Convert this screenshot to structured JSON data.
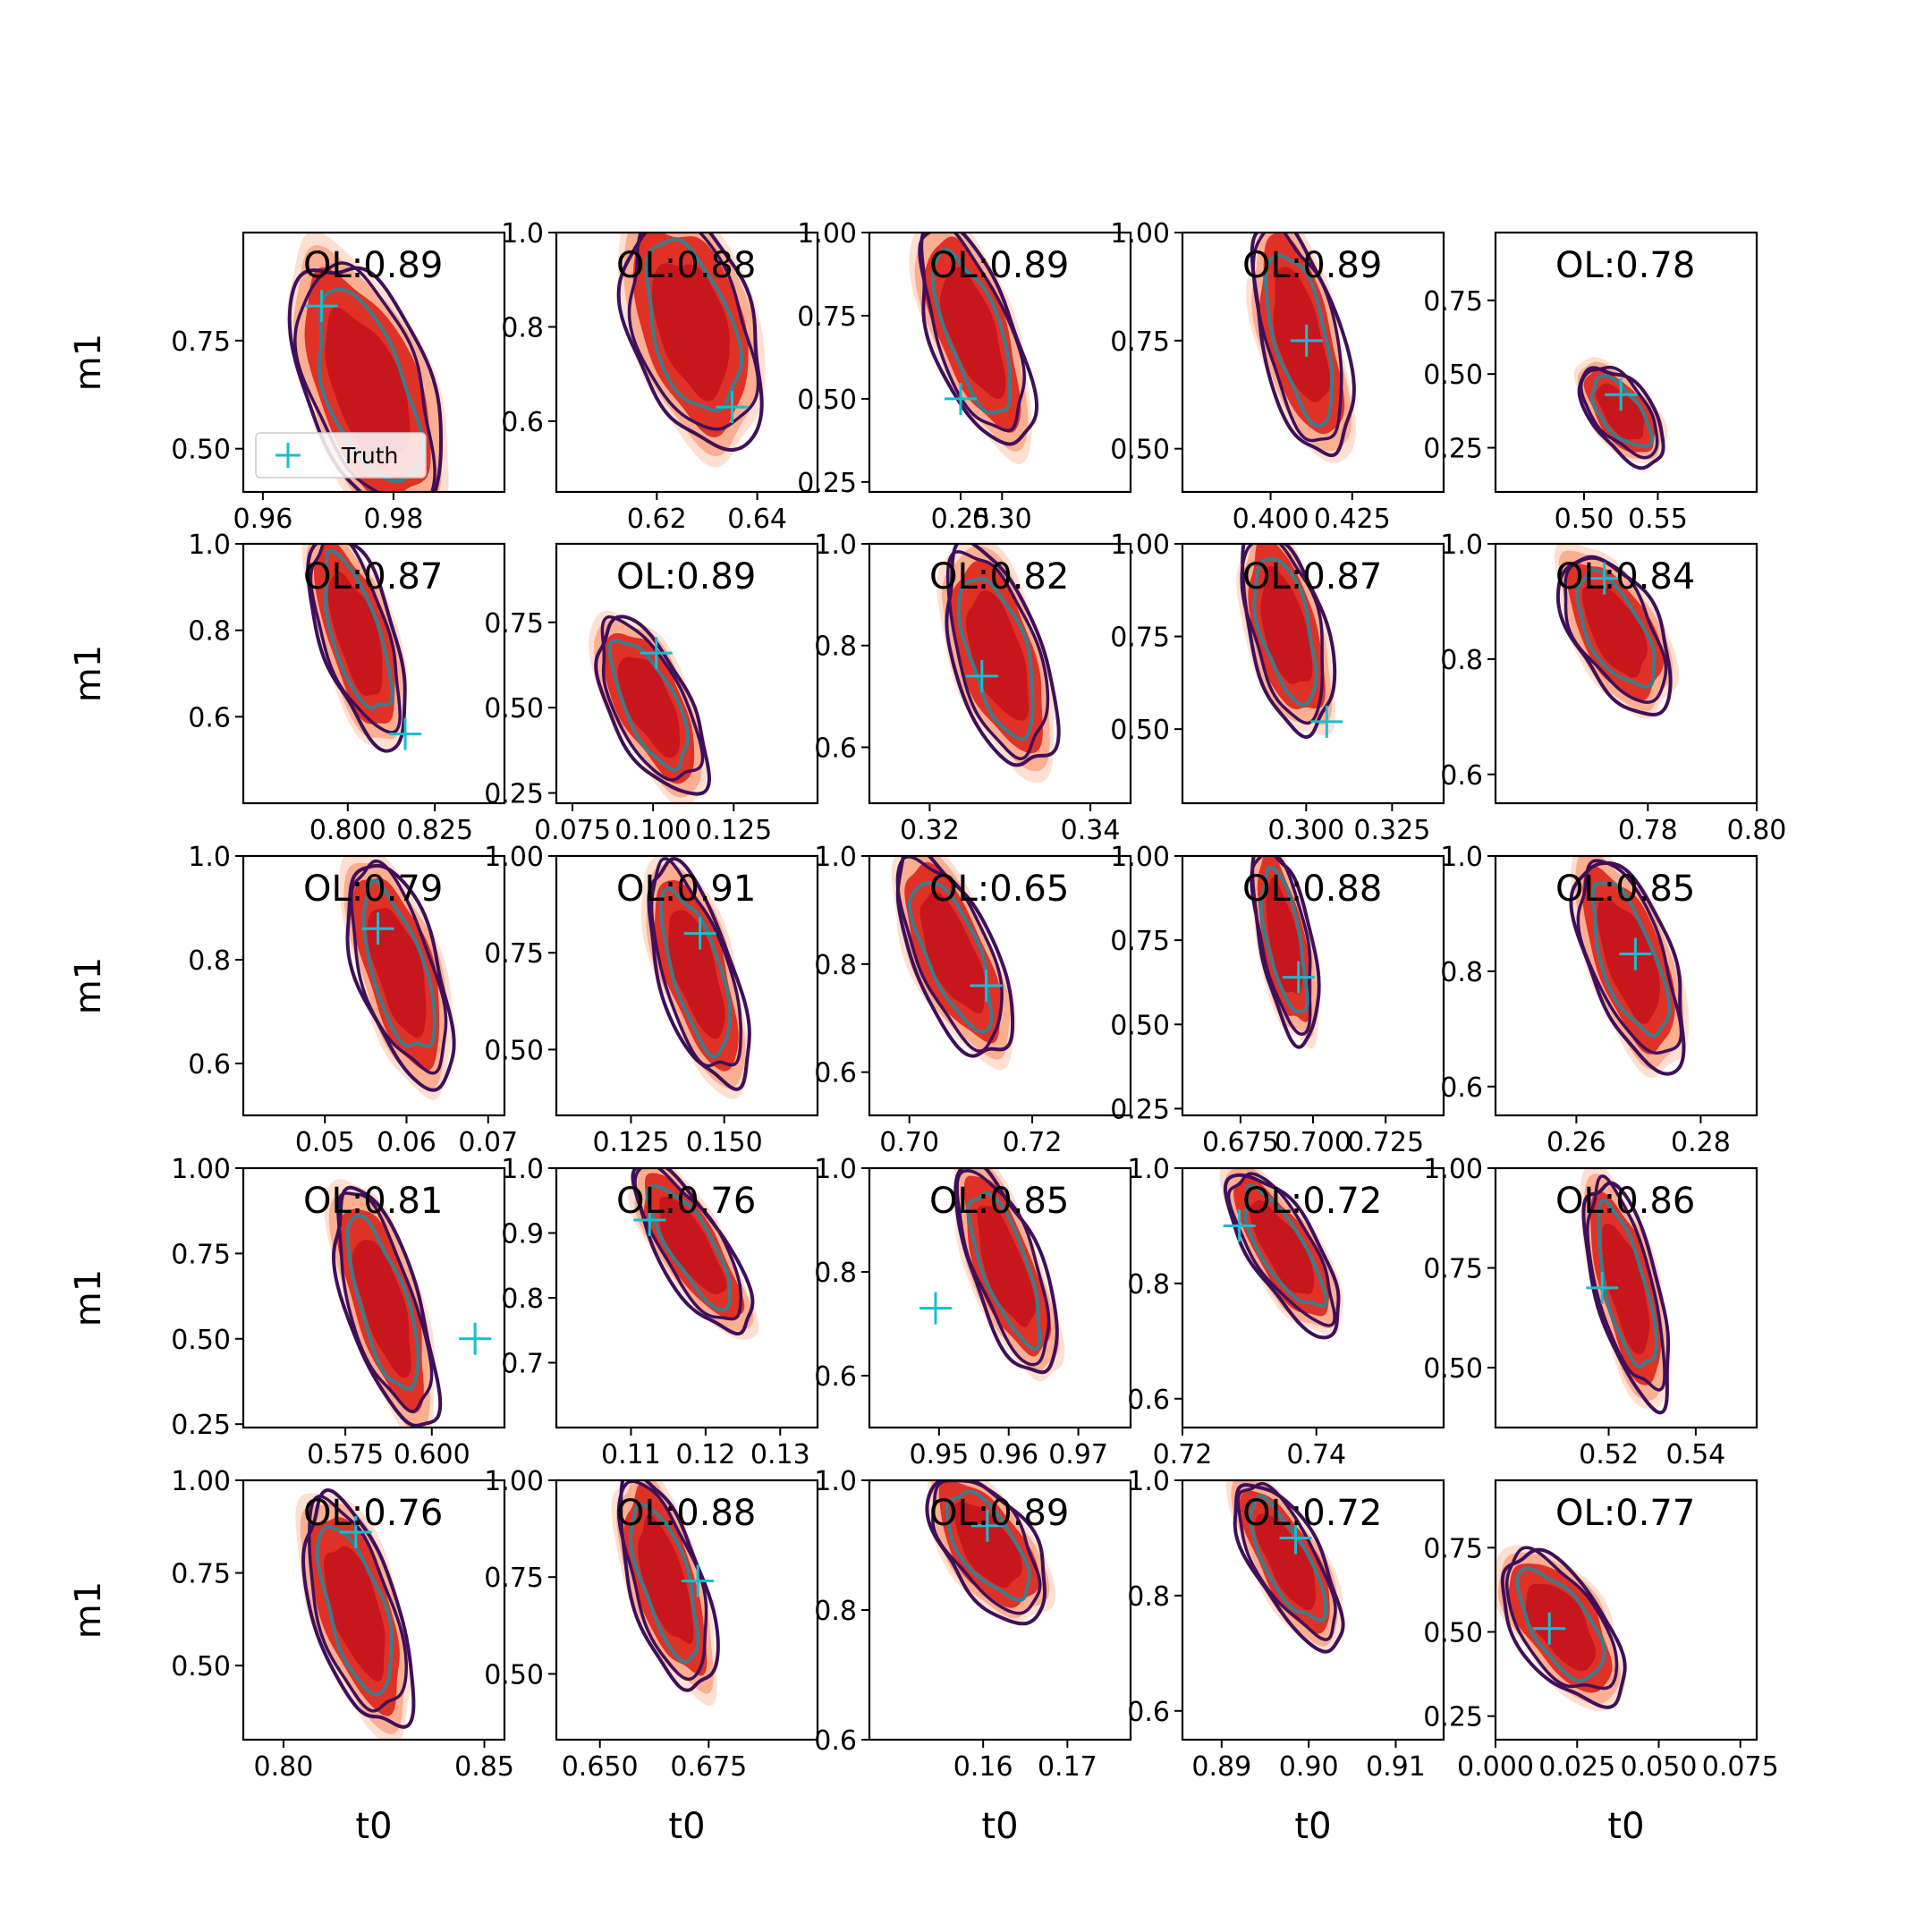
{
  "figure": {
    "x_axis_label": "t0",
    "y_axis_label": "m1",
    "legend_label": "Truth",
    "legend_panel": 0,
    "colors": {
      "fill_dark": "#c8161d",
      "fill_mid": "#e03127",
      "fill_light": "#fcae91",
      "fill_lightest": "#fde0d2",
      "contour_outer": "#3f0f5a",
      "contour_inner": "#3a7d8c",
      "truth_marker": "#17becf",
      "axes": "#000000"
    }
  },
  "chart_data": [
    {
      "type": "scatter",
      "overlap_label": "OL:0.89",
      "xlim": [
        0.957,
        0.997
      ],
      "ylim": [
        0.4,
        1.0
      ],
      "xticks": [
        {
          "v": 0.96,
          "t": "0.96"
        },
        {
          "v": 0.98,
          "t": "0.98"
        }
      ],
      "yticks": [
        {
          "v": 0.5,
          "t": "0.50"
        },
        {
          "v": 0.75,
          "t": "0.75"
        }
      ],
      "truth": {
        "x": 0.969,
        "y": 0.83
      },
      "blob": {
        "cx": 0.976,
        "cy": 0.64,
        "rx": 0.0085,
        "ry": 0.3,
        "tilt": -0.35
      }
    },
    {
      "type": "scatter",
      "overlap_label": "OL:0.88",
      "xlim": [
        0.6,
        0.652
      ],
      "ylim": [
        0.45,
        1.0
      ],
      "xticks": [
        {
          "v": 0.62,
          "t": "0.62"
        },
        {
          "v": 0.64,
          "t": "0.64"
        }
      ],
      "yticks": [
        {
          "v": 0.6,
          "t": "0.6"
        },
        {
          "v": 0.8,
          "t": "0.8"
        },
        {
          "v": 1.0,
          "t": "1.0"
        }
      ],
      "truth": {
        "x": 0.635,
        "y": 0.63
      },
      "blob": {
        "cx": 0.627,
        "cy": 0.8,
        "rx": 0.011,
        "ry": 0.24,
        "tilt": -0.3
      }
    },
    {
      "type": "scatter",
      "overlap_label": "OL:0.89",
      "xlim": [
        0.14,
        0.455
      ],
      "ylim": [
        0.22,
        1.0
      ],
      "xticks": [
        {
          "v": 0.25,
          "t": "0.25"
        },
        {
          "v": 0.3,
          "t": "0.30"
        }
      ],
      "yticks": [
        {
          "v": 0.25,
          "t": "0.25"
        },
        {
          "v": 0.5,
          "t": "0.50"
        },
        {
          "v": 0.75,
          "t": "0.75"
        },
        {
          "v": 1.0,
          "t": "1.00"
        }
      ],
      "truth": {
        "x": 0.25,
        "y": 0.5
      },
      "blob": {
        "cx": 0.265,
        "cy": 0.7,
        "rx": 0.045,
        "ry": 0.33,
        "tilt": -0.35
      }
    },
    {
      "type": "scatter",
      "overlap_label": "OL:0.89",
      "xlim": [
        0.373,
        0.453
      ],
      "ylim": [
        0.4,
        1.0
      ],
      "xticks": [
        {
          "v": 0.4,
          "t": "0.400"
        },
        {
          "v": 0.425,
          "t": "0.425"
        }
      ],
      "yticks": [
        {
          "v": 0.5,
          "t": "0.50"
        },
        {
          "v": 0.75,
          "t": "0.75"
        },
        {
          "v": 1.0,
          "t": "1.00"
        }
      ],
      "truth": {
        "x": 0.411,
        "y": 0.75
      },
      "blob": {
        "cx": 0.409,
        "cy": 0.76,
        "rx": 0.011,
        "ry": 0.26,
        "tilt": -0.25
      }
    },
    {
      "type": "scatter",
      "overlap_label": "OL:0.78",
      "xlim": [
        0.44,
        0.617
      ],
      "ylim": [
        0.1,
        0.98
      ],
      "xticks": [
        {
          "v": 0.5,
          "t": "0.50"
        },
        {
          "v": 0.55,
          "t": "0.55"
        }
      ],
      "yticks": [
        {
          "v": 0.25,
          "t": "0.25"
        },
        {
          "v": 0.5,
          "t": "0.50"
        },
        {
          "v": 0.75,
          "t": "0.75"
        }
      ],
      "truth": {
        "x": 0.525,
        "y": 0.43
      },
      "blob": {
        "cx": 0.525,
        "cy": 0.37,
        "rx": 0.018,
        "ry": 0.18,
        "tilt": -0.65
      }
    },
    {
      "type": "scatter",
      "overlap_label": "OL:0.87",
      "xlim": [
        0.77,
        0.845
      ],
      "ylim": [
        0.4,
        1.0
      ],
      "xticks": [
        {
          "v": 0.8,
          "t": "0.800"
        },
        {
          "v": 0.825,
          "t": "0.825"
        }
      ],
      "yticks": [
        {
          "v": 0.6,
          "t": "0.6"
        },
        {
          "v": 0.8,
          "t": "0.8"
        },
        {
          "v": 1.0,
          "t": "1.0"
        }
      ],
      "truth": {
        "x": 0.8165,
        "y": 0.56
      },
      "blob": {
        "cx": 0.8025,
        "cy": 0.79,
        "rx": 0.0095,
        "ry": 0.24,
        "tilt": -0.3
      }
    },
    {
      "type": "scatter",
      "overlap_label": "OL:0.89",
      "xlim": [
        0.07,
        0.151
      ],
      "ylim": [
        0.22,
        0.98
      ],
      "xticks": [
        {
          "v": 0.075,
          "t": "0.075"
        },
        {
          "v": 0.1,
          "t": "0.100"
        },
        {
          "v": 0.125,
          "t": "0.125"
        }
      ],
      "yticks": [
        {
          "v": 0.25,
          "t": "0.25"
        },
        {
          "v": 0.5,
          "t": "0.50"
        },
        {
          "v": 0.75,
          "t": "0.75"
        }
      ],
      "truth": {
        "x": 0.101,
        "y": 0.66
      },
      "blob": {
        "cx": 0.099,
        "cy": 0.51,
        "rx": 0.011,
        "ry": 0.26,
        "tilt": -0.45
      }
    },
    {
      "type": "scatter",
      "overlap_label": "OL:0.82",
      "xlim": [
        0.3125,
        0.345
      ],
      "ylim": [
        0.49,
        1.0
      ],
      "xticks": [
        {
          "v": 0.32,
          "t": "0.32"
        },
        {
          "v": 0.34,
          "t": "0.34"
        }
      ],
      "yticks": [
        {
          "v": 0.6,
          "t": "0.6"
        },
        {
          "v": 0.8,
          "t": "0.8"
        },
        {
          "v": 1.0,
          "t": "1.0"
        }
      ],
      "truth": {
        "x": 0.3265,
        "y": 0.74
      },
      "blob": {
        "cx": 0.3285,
        "cy": 0.78,
        "rx": 0.005,
        "ry": 0.21,
        "tilt": -0.3
      }
    },
    {
      "type": "scatter",
      "overlap_label": "OL:0.87",
      "xlim": [
        0.264,
        0.34
      ],
      "ylim": [
        0.3,
        1.0
      ],
      "xticks": [
        {
          "v": 0.3,
          "t": "0.300"
        },
        {
          "v": 0.325,
          "t": "0.325"
        }
      ],
      "yticks": [
        {
          "v": 0.5,
          "t": "0.50"
        },
        {
          "v": 0.75,
          "t": "0.75"
        },
        {
          "v": 1.0,
          "t": "1.00"
        }
      ],
      "truth": {
        "x": 0.306,
        "y": 0.52
      },
      "blob": {
        "cx": 0.294,
        "cy": 0.77,
        "rx": 0.01,
        "ry": 0.26,
        "tilt": -0.25
      }
    },
    {
      "type": "scatter",
      "overlap_label": "OL:0.84",
      "xlim": [
        0.752,
        0.8
      ],
      "ylim": [
        0.55,
        1.0
      ],
      "xticks": [
        {
          "v": 0.78,
          "t": "0.78"
        },
        {
          "v": 0.8,
          "t": "0.80"
        }
      ],
      "yticks": [
        {
          "v": 0.6,
          "t": "0.6"
        },
        {
          "v": 0.8,
          "t": "0.8"
        },
        {
          "v": 1.0,
          "t": "1.0"
        }
      ],
      "truth": {
        "x": 0.772,
        "y": 0.94
      },
      "blob": {
        "cx": 0.774,
        "cy": 0.85,
        "rx": 0.007,
        "ry": 0.14,
        "tilt": -0.5
      }
    },
    {
      "type": "scatter",
      "overlap_label": "OL:0.79",
      "xlim": [
        0.04,
        0.072
      ],
      "ylim": [
        0.5,
        1.0
      ],
      "xticks": [
        {
          "v": 0.05,
          "t": "0.05"
        },
        {
          "v": 0.06,
          "t": "0.06"
        },
        {
          "v": 0.07,
          "t": "0.07"
        }
      ],
      "yticks": [
        {
          "v": 0.6,
          "t": "0.6"
        },
        {
          "v": 0.8,
          "t": "0.8"
        },
        {
          "v": 1.0,
          "t": "1.0"
        }
      ],
      "truth": {
        "x": 0.0565,
        "y": 0.86
      },
      "blob": {
        "cx": 0.059,
        "cy": 0.78,
        "rx": 0.0045,
        "ry": 0.21,
        "tilt": -0.3
      }
    },
    {
      "type": "scatter",
      "overlap_label": "OL:0.91",
      "xlim": [
        0.105,
        0.175
      ],
      "ylim": [
        0.33,
        1.0
      ],
      "xticks": [
        {
          "v": 0.125,
          "t": "0.125"
        },
        {
          "v": 0.15,
          "t": "0.150"
        }
      ],
      "yticks": [
        {
          "v": 0.5,
          "t": "0.50"
        },
        {
          "v": 0.75,
          "t": "0.75"
        },
        {
          "v": 1.0,
          "t": "1.00"
        }
      ],
      "truth": {
        "x": 0.1435,
        "y": 0.8
      },
      "blob": {
        "cx": 0.1425,
        "cy": 0.7,
        "rx": 0.009,
        "ry": 0.28,
        "tilt": -0.3
      }
    },
    {
      "type": "scatter",
      "overlap_label": "OL:0.65",
      "xlim": [
        0.6935,
        0.736
      ],
      "ylim": [
        0.52,
        1.0
      ],
      "xticks": [
        {
          "v": 0.7,
          "t": "0.70"
        },
        {
          "v": 0.72,
          "t": "0.72"
        }
      ],
      "yticks": [
        {
          "v": 0.6,
          "t": "0.6"
        },
        {
          "v": 0.8,
          "t": "0.8"
        },
        {
          "v": 1.0,
          "t": "1.0"
        }
      ],
      "truth": {
        "x": 0.7125,
        "y": 0.76
      },
      "blob": {
        "cx": 0.707,
        "cy": 0.82,
        "rx": 0.006,
        "ry": 0.19,
        "tilt": -0.4
      }
    },
    {
      "type": "scatter",
      "overlap_label": "OL:0.88",
      "xlim": [
        0.655,
        0.745
      ],
      "ylim": [
        0.23,
        1.0
      ],
      "xticks": [
        {
          "v": 0.675,
          "t": "0.675"
        },
        {
          "v": 0.7,
          "t": "0.700"
        },
        {
          "v": 0.725,
          "t": "0.725"
        }
      ],
      "yticks": [
        {
          "v": 0.25,
          "t": "0.25"
        },
        {
          "v": 0.5,
          "t": "0.50"
        },
        {
          "v": 0.75,
          "t": "0.75"
        },
        {
          "v": 1.0,
          "t": "1.00"
        }
      ],
      "truth": {
        "x": 0.695,
        "y": 0.64
      },
      "blob": {
        "cx": 0.69,
        "cy": 0.75,
        "rx": 0.008,
        "ry": 0.28,
        "tilt": -0.2
      }
    },
    {
      "type": "scatter",
      "overlap_label": "OL:0.85",
      "xlim": [
        0.247,
        0.289
      ],
      "ylim": [
        0.55,
        1.0
      ],
      "xticks": [
        {
          "v": 0.26,
          "t": "0.26"
        },
        {
          "v": 0.28,
          "t": "0.28"
        }
      ],
      "yticks": [
        {
          "v": 0.6,
          "t": "0.6"
        },
        {
          "v": 0.8,
          "t": "0.8"
        },
        {
          "v": 1.0,
          "t": "1.0"
        }
      ],
      "truth": {
        "x": 0.2695,
        "y": 0.83
      },
      "blob": {
        "cx": 0.2685,
        "cy": 0.82,
        "rx": 0.006,
        "ry": 0.18,
        "tilt": -0.35
      }
    },
    {
      "type": "scatter",
      "overlap_label": "OL:0.81",
      "xlim": [
        0.5455,
        0.621
      ],
      "ylim": [
        0.24,
        1.0
      ],
      "xticks": [
        {
          "v": 0.575,
          "t": "0.575"
        },
        {
          "v": 0.6,
          "t": "0.600"
        }
      ],
      "yticks": [
        {
          "v": 0.25,
          "t": "0.25"
        },
        {
          "v": 0.5,
          "t": "0.50"
        },
        {
          "v": 0.75,
          "t": "0.75"
        },
        {
          "v": 1.0,
          "t": "1.00"
        }
      ],
      "truth": {
        "x": 0.6125,
        "y": 0.5
      },
      "blob": {
        "cx": 0.586,
        "cy": 0.6,
        "rx": 0.0095,
        "ry": 0.34,
        "tilt": -0.3
      }
    },
    {
      "type": "scatter",
      "overlap_label": "OL:0.76",
      "xlim": [
        0.1,
        0.135
      ],
      "ylim": [
        0.6,
        1.0
      ],
      "xticks": [
        {
          "v": 0.11,
          "t": "0.11"
        },
        {
          "v": 0.12,
          "t": "0.12"
        },
        {
          "v": 0.13,
          "t": "0.13"
        }
      ],
      "yticks": [
        {
          "v": 0.7,
          "t": "0.7"
        },
        {
          "v": 0.8,
          "t": "0.8"
        },
        {
          "v": 0.9,
          "t": "0.9"
        },
        {
          "v": 1.0,
          "t": "1.0"
        }
      ],
      "truth": {
        "x": 0.1125,
        "y": 0.92
      },
      "blob": {
        "cx": 0.118,
        "cy": 0.88,
        "rx": 0.004,
        "ry": 0.14,
        "tilt": -0.55
      }
    },
    {
      "type": "scatter",
      "overlap_label": "OL:0.85",
      "xlim": [
        0.94,
        0.9775
      ],
      "ylim": [
        0.5,
        1.0
      ],
      "xticks": [
        {
          "v": 0.95,
          "t": "0.95"
        },
        {
          "v": 0.96,
          "t": "0.96"
        },
        {
          "v": 0.97,
          "t": "0.97"
        }
      ],
      "yticks": [
        {
          "v": 0.6,
          "t": "0.6"
        },
        {
          "v": 0.8,
          "t": "0.8"
        },
        {
          "v": 1.0,
          "t": "1.0"
        }
      ],
      "truth": {
        "x": 0.9495,
        "y": 0.73
      },
      "blob": {
        "cx": 0.9595,
        "cy": 0.81,
        "rx": 0.0045,
        "ry": 0.2,
        "tilt": -0.35
      }
    },
    {
      "type": "scatter",
      "overlap_label": "OL:0.72",
      "xlim": [
        0.72,
        0.759
      ],
      "ylim": [
        0.55,
        1.0
      ],
      "xticks": [
        {
          "v": 0.72,
          "t": "0.72"
        },
        {
          "v": 0.74,
          "t": "0.74"
        }
      ],
      "yticks": [
        {
          "v": 0.6,
          "t": "0.6"
        },
        {
          "v": 0.8,
          "t": "0.8"
        },
        {
          "v": 1.0,
          "t": "1.0"
        }
      ],
      "truth": {
        "x": 0.7285,
        "y": 0.9
      },
      "blob": {
        "cx": 0.735,
        "cy": 0.86,
        "rx": 0.0045,
        "ry": 0.15,
        "tilt": -0.55
      }
    },
    {
      "type": "scatter",
      "overlap_label": "OL:0.86",
      "xlim": [
        0.494,
        0.554
      ],
      "ylim": [
        0.35,
        1.0
      ],
      "xticks": [
        {
          "v": 0.52,
          "t": "0.52"
        },
        {
          "v": 0.54,
          "t": "0.54"
        }
      ],
      "yticks": [
        {
          "v": 0.5,
          "t": "0.50"
        },
        {
          "v": 0.75,
          "t": "0.75"
        },
        {
          "v": 1.0,
          "t": "1.00"
        }
      ],
      "truth": {
        "x": 0.5185,
        "y": 0.7
      },
      "blob": {
        "cx": 0.524,
        "cy": 0.7,
        "rx": 0.0065,
        "ry": 0.27,
        "tilt": -0.25
      }
    },
    {
      "type": "scatter",
      "overlap_label": "OL:0.76",
      "xlim": [
        0.79,
        0.855
      ],
      "ylim": [
        0.3,
        1.0
      ],
      "xticks": [
        {
          "v": 0.8,
          "t": "0.80"
        },
        {
          "v": 0.85,
          "t": "0.85"
        }
      ],
      "yticks": [
        {
          "v": 0.5,
          "t": "0.50"
        },
        {
          "v": 0.75,
          "t": "0.75"
        },
        {
          "v": 1.0,
          "t": "1.00"
        }
      ],
      "truth": {
        "x": 0.818,
        "y": 0.86
      },
      "blob": {
        "cx": 0.818,
        "cy": 0.65,
        "rx": 0.0095,
        "ry": 0.3,
        "tilt": -0.3
      }
    },
    {
      "type": "scatter",
      "overlap_label": "OL:0.88",
      "xlim": [
        0.64,
        0.7
      ],
      "ylim": [
        0.33,
        1.0
      ],
      "xticks": [
        {
          "v": 0.65,
          "t": "0.650"
        },
        {
          "v": 0.675,
          "t": "0.675"
        }
      ],
      "yticks": [
        {
          "v": 0.5,
          "t": "0.50"
        },
        {
          "v": 0.75,
          "t": "0.75"
        },
        {
          "v": 1.0,
          "t": "1.00"
        }
      ],
      "truth": {
        "x": 0.6725,
        "y": 0.74
      },
      "blob": {
        "cx": 0.665,
        "cy": 0.74,
        "rx": 0.0075,
        "ry": 0.27,
        "tilt": -0.3
      }
    },
    {
      "type": "scatter",
      "overlap_label": "OL:0.89",
      "xlim": [
        0.1465,
        0.1775
      ],
      "ylim": [
        0.6,
        1.0
      ],
      "xticks": [
        {
          "v": 0.16,
          "t": "0.16"
        },
        {
          "v": 0.17,
          "t": "0.17"
        }
      ],
      "yticks": [
        {
          "v": 0.6,
          "t": "0.6"
        },
        {
          "v": 0.8,
          "t": "0.8"
        },
        {
          "v": 1.0,
          "t": "1.0"
        }
      ],
      "truth": {
        "x": 0.1605,
        "y": 0.93
      },
      "blob": {
        "cx": 0.1605,
        "cy": 0.9,
        "rx": 0.0045,
        "ry": 0.12,
        "tilt": -0.6
      }
    },
    {
      "type": "scatter",
      "overlap_label": "OL:0.72",
      "xlim": [
        0.8855,
        0.9155
      ],
      "ylim": [
        0.55,
        1.0
      ],
      "xticks": [
        {
          "v": 0.89,
          "t": "0.89"
        },
        {
          "v": 0.9,
          "t": "0.90"
        },
        {
          "v": 0.91,
          "t": "0.91"
        }
      ],
      "yticks": [
        {
          "v": 0.6,
          "t": "0.6"
        },
        {
          "v": 0.8,
          "t": "0.8"
        },
        {
          "v": 1.0,
          "t": "1.0"
        }
      ],
      "truth": {
        "x": 0.8985,
        "y": 0.9
      },
      "blob": {
        "cx": 0.8975,
        "cy": 0.86,
        "rx": 0.0035,
        "ry": 0.15,
        "tilt": -0.5
      }
    },
    {
      "type": "scatter",
      "overlap_label": "OL:0.77",
      "xlim": [
        0.0,
        0.08
      ],
      "ylim": [
        0.18,
        0.95
      ],
      "xticks": [
        {
          "v": 0.0,
          "t": "0.000"
        },
        {
          "v": 0.025,
          "t": "0.025"
        },
        {
          "v": 0.05,
          "t": "0.050"
        },
        {
          "v": 0.075,
          "t": "0.075"
        }
      ],
      "yticks": [
        {
          "v": 0.25,
          "t": "0.25"
        },
        {
          "v": 0.5,
          "t": "0.50"
        },
        {
          "v": 0.75,
          "t": "0.75"
        }
      ],
      "truth": {
        "x": 0.0165,
        "y": 0.51
      },
      "blob": {
        "cx": 0.02,
        "cy": 0.52,
        "rx": 0.012,
        "ry": 0.24,
        "tilt": -0.6
      }
    }
  ]
}
